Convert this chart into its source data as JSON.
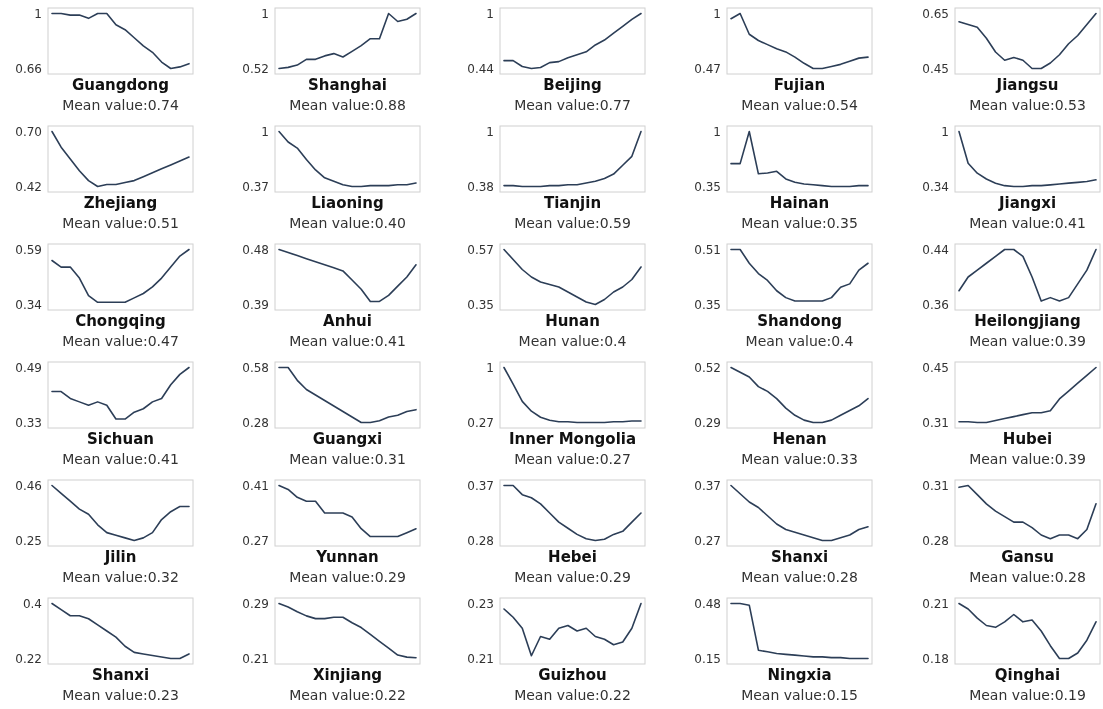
{
  "chart_data": [
    {
      "type": "line",
      "title": "Guangdong",
      "annotations": [
        "Mean value:0.74"
      ],
      "categories": [
        null,
        null,
        null,
        null,
        null,
        null,
        null,
        null,
        null,
        null,
        null,
        null,
        null,
        null,
        null,
        null
      ],
      "color": "#2c3e57",
      "values": [
        1,
        1,
        0.99,
        0.99,
        0.97,
        1,
        1,
        0.93,
        0.9,
        0.85,
        0.8,
        0.76,
        0.7,
        0.66,
        0.67,
        0.69
      ],
      "ylim": [
        0.626,
        1.034
      ],
      "yticks": [
        0.66,
        1
      ],
      "tick_labels": "y"
    },
    {
      "type": "line",
      "title": "Shanghai",
      "annotations": [
        "Mean value:0.88"
      ],
      "categories": [
        null,
        null,
        null,
        null,
        null,
        null,
        null,
        null,
        null,
        null,
        null,
        null,
        null,
        null,
        null,
        null
      ],
      "color": "#2c3e57",
      "values": [
        0.52,
        0.53,
        0.55,
        0.6,
        0.6,
        0.63,
        0.65,
        0.62,
        0.67,
        0.72,
        0.78,
        0.78,
        1,
        0.93,
        0.95,
        1
      ],
      "ylim": [
        0.472,
        1.048
      ],
      "yticks": [
        0.52,
        1
      ],
      "tick_labels": "y"
    },
    {
      "type": "line",
      "title": "Beijing",
      "annotations": [
        "Mean value:0.77"
      ],
      "categories": [
        null,
        null,
        null,
        null,
        null,
        null,
        null,
        null,
        null,
        null,
        null,
        null,
        null,
        null,
        null,
        null
      ],
      "color": "#2c3e57",
      "values": [
        0.52,
        0.52,
        0.46,
        0.44,
        0.45,
        0.5,
        0.51,
        0.55,
        0.58,
        0.61,
        0.68,
        0.73,
        0.8,
        0.87,
        0.94,
        1
      ],
      "ylim": [
        0.384,
        1.056
      ],
      "yticks": [
        0.44,
        1
      ],
      "tick_labels": "y"
    },
    {
      "type": "line",
      "title": "Fujian",
      "annotations": [
        "Mean value:0.54"
      ],
      "categories": [
        null,
        null,
        null,
        null,
        null,
        null,
        null,
        null,
        null,
        null,
        null,
        null,
        null,
        null,
        null,
        null
      ],
      "color": "#2c3e57",
      "values": [
        0.95,
        1,
        0.8,
        0.74,
        0.7,
        0.66,
        0.63,
        0.58,
        0.52,
        0.47,
        0.47,
        0.49,
        0.51,
        0.54,
        0.57,
        0.58
      ],
      "ylim": [
        0.417,
        1.053
      ],
      "yticks": [
        0.47,
        1
      ],
      "tick_labels": "y"
    },
    {
      "type": "line",
      "title": "Jiangsu",
      "annotations": [
        "Mean value:0.53"
      ],
      "categories": [
        null,
        null,
        null,
        null,
        null,
        null,
        null,
        null,
        null,
        null,
        null,
        null,
        null,
        null,
        null,
        null
      ],
      "color": "#2c3e57",
      "values": [
        0.62,
        0.61,
        0.6,
        0.56,
        0.51,
        0.48,
        0.49,
        0.48,
        0.45,
        0.45,
        0.47,
        0.5,
        0.54,
        0.57,
        0.61,
        0.65
      ],
      "ylim": [
        0.43,
        0.67
      ],
      "yticks": [
        0.45,
        0.65
      ],
      "tick_labels": "y"
    },
    {
      "type": "line",
      "title": "Zhejiang",
      "annotations": [
        "Mean value:0.51"
      ],
      "categories": [
        null,
        null,
        null,
        null,
        null,
        null,
        null,
        null,
        null,
        null,
        null,
        null,
        null,
        null,
        null,
        null
      ],
      "color": "#2c3e57",
      "values": [
        0.7,
        0.62,
        0.56,
        0.5,
        0.45,
        0.42,
        0.43,
        0.43,
        0.44,
        0.45,
        0.47,
        0.49,
        0.51,
        0.53,
        0.55,
        0.57
      ],
      "ylim": [
        0.392,
        0.728
      ],
      "yticks": [
        0.42,
        {
          "value": 0.7,
          "label": "0.70"
        }
      ],
      "tick_labels": "y"
    },
    {
      "type": "line",
      "title": "Liaoning",
      "annotations": [
        "Mean value:0.40"
      ],
      "categories": [
        null,
        null,
        null,
        null,
        null,
        null,
        null,
        null,
        null,
        null,
        null,
        null,
        null,
        null,
        null,
        null
      ],
      "color": "#2c3e57",
      "values": [
        1,
        0.88,
        0.81,
        0.68,
        0.56,
        0.47,
        0.43,
        0.39,
        0.37,
        0.37,
        0.38,
        0.38,
        0.38,
        0.39,
        0.39,
        0.41
      ],
      "ylim": [
        0.307,
        1.063
      ],
      "yticks": [
        0.37,
        1
      ],
      "tick_labels": "y"
    },
    {
      "type": "line",
      "title": "Tianjin",
      "annotations": [
        "Mean value:0.59"
      ],
      "categories": [
        null,
        null,
        null,
        null,
        null,
        null,
        null,
        null,
        null,
        null,
        null,
        null,
        null,
        null,
        null,
        null
      ],
      "color": "#2c3e57",
      "values": [
        0.39,
        0.39,
        0.38,
        0.38,
        0.38,
        0.39,
        0.39,
        0.4,
        0.4,
        0.42,
        0.44,
        0.47,
        0.52,
        0.62,
        0.72,
        1
      ],
      "ylim": [
        0.318,
        1.062
      ],
      "yticks": [
        0.38,
        1
      ],
      "tick_labels": "y"
    },
    {
      "type": "line",
      "title": "Hainan",
      "annotations": [
        "Mean value:0.35"
      ],
      "categories": [
        null,
        null,
        null,
        null,
        null,
        null,
        null,
        null,
        null,
        null,
        null,
        null,
        null,
        null,
        null,
        null
      ],
      "color": "#2c3e57",
      "values": [
        0.62,
        0.62,
        1,
        0.5,
        0.51,
        0.53,
        0.44,
        0.4,
        0.38,
        0.37,
        0.36,
        0.35,
        0.35,
        0.35,
        0.36,
        0.36
      ],
      "ylim": [
        0.285,
        1.065
      ],
      "yticks": [
        0.35,
        1
      ],
      "tick_labels": "y"
    },
    {
      "type": "line",
      "title": "Jiangxi",
      "annotations": [
        "Mean value:0.41"
      ],
      "categories": [
        null,
        null,
        null,
        null,
        null,
        null,
        null,
        null,
        null,
        null,
        null,
        null,
        null,
        null,
        null,
        null
      ],
      "color": "#2c3e57",
      "values": [
        1,
        0.62,
        0.5,
        0.43,
        0.38,
        0.35,
        0.34,
        0.34,
        0.35,
        0.35,
        0.36,
        0.37,
        0.38,
        0.39,
        0.4,
        0.42
      ],
      "ylim": [
        0.274,
        1.066
      ],
      "yticks": [
        0.34,
        1
      ],
      "tick_labels": "y"
    },
    {
      "type": "line",
      "title": "Chongqing",
      "annotations": [
        "Mean value:0.47"
      ],
      "categories": [
        null,
        null,
        null,
        null,
        null,
        null,
        null,
        null,
        null,
        null,
        null,
        null,
        null,
        null,
        null,
        null
      ],
      "color": "#2c3e57",
      "values": [
        0.54,
        0.51,
        0.51,
        0.46,
        0.38,
        0.35,
        0.35,
        0.35,
        0.35,
        0.37,
        0.39,
        0.42,
        0.46,
        0.51,
        0.56,
        0.59
      ],
      "ylim": [
        0.315,
        0.615
      ],
      "yticks": [
        0.34,
        0.59
      ],
      "tick_labels": "y"
    },
    {
      "type": "line",
      "title": "Anhui",
      "annotations": [
        "Mean value:0.41"
      ],
      "categories": [
        null,
        null,
        null,
        null,
        null,
        null,
        null,
        null,
        null,
        null,
        null,
        null,
        null,
        null,
        null,
        null
      ],
      "color": "#2c3e57",
      "values": [
        0.48,
        0.475,
        0.47,
        0.465,
        0.46,
        0.455,
        0.45,
        0.445,
        0.43,
        0.415,
        0.395,
        0.395,
        0.405,
        0.42,
        0.435,
        0.455
      ],
      "ylim": [
        0.381,
        0.489
      ],
      "yticks": [
        0.39,
        0.48
      ],
      "tick_labels": "y"
    },
    {
      "type": "line",
      "title": "Hunan",
      "annotations": [
        "Mean value:0.4"
      ],
      "categories": [
        null,
        null,
        null,
        null,
        null,
        null,
        null,
        null,
        null,
        null,
        null,
        null,
        null,
        null,
        null,
        null
      ],
      "color": "#2c3e57",
      "values": [
        0.57,
        0.53,
        0.49,
        0.46,
        0.44,
        0.43,
        0.42,
        0.4,
        0.38,
        0.36,
        0.35,
        0.37,
        0.4,
        0.42,
        0.45,
        0.5
      ],
      "ylim": [
        0.328,
        0.592
      ],
      "yticks": [
        0.35,
        0.57
      ],
      "tick_labels": "y"
    },
    {
      "type": "line",
      "title": "Shandong",
      "annotations": [
        "Mean value:0.4"
      ],
      "categories": [
        null,
        null,
        null,
        null,
        null,
        null,
        null,
        null,
        null,
        null,
        null,
        null,
        null,
        null,
        null,
        null
      ],
      "color": "#2c3e57",
      "values": [
        0.51,
        0.51,
        0.47,
        0.44,
        0.42,
        0.39,
        0.37,
        0.36,
        0.36,
        0.36,
        0.36,
        0.37,
        0.4,
        0.41,
        0.45,
        0.47
      ],
      "ylim": [
        0.334,
        0.526
      ],
      "yticks": [
        0.35,
        0.51
      ],
      "tick_labels": "y"
    },
    {
      "type": "line",
      "title": "Heilongjiang",
      "annotations": [
        "Mean value:0.39"
      ],
      "categories": [
        null,
        null,
        null,
        null,
        null,
        null,
        null,
        null,
        null,
        null,
        null,
        null,
        null,
        null,
        null,
        null
      ],
      "color": "#2c3e57",
      "values": [
        0.38,
        0.4,
        0.41,
        0.42,
        0.43,
        0.44,
        0.44,
        0.43,
        0.4,
        0.365,
        0.37,
        0.365,
        0.37,
        0.39,
        0.41,
        0.44
      ],
      "ylim": [
        0.352,
        0.448
      ],
      "yticks": [
        0.36,
        0.44
      ],
      "tick_labels": "y"
    },
    {
      "type": "line",
      "title": "Sichuan",
      "annotations": [
        "Mean value:0.41"
      ],
      "categories": [
        null,
        null,
        null,
        null,
        null,
        null,
        null,
        null,
        null,
        null,
        null,
        null,
        null,
        null,
        null,
        null
      ],
      "color": "#2c3e57",
      "values": [
        0.42,
        0.42,
        0.4,
        0.39,
        0.38,
        0.39,
        0.38,
        0.34,
        0.34,
        0.36,
        0.37,
        0.39,
        0.4,
        0.44,
        0.47,
        0.49
      ],
      "ylim": [
        0.314,
        0.506
      ],
      "yticks": [
        0.33,
        0.49
      ],
      "tick_labels": "y"
    },
    {
      "type": "line",
      "title": "Guangxi",
      "annotations": [
        "Mean value:0.31"
      ],
      "categories": [
        null,
        null,
        null,
        null,
        null,
        null,
        null,
        null,
        null,
        null,
        null,
        null,
        null,
        null,
        null,
        null
      ],
      "color": "#2c3e57",
      "values": [
        0.58,
        0.58,
        0.51,
        0.46,
        0.43,
        0.4,
        0.37,
        0.34,
        0.31,
        0.28,
        0.28,
        0.29,
        0.31,
        0.32,
        0.34,
        0.35
      ],
      "ylim": [
        0.25,
        0.61
      ],
      "yticks": [
        0.28,
        0.58
      ],
      "tick_labels": "y"
    },
    {
      "type": "line",
      "title": "Inner Mongolia",
      "annotations": [
        "Mean value:0.27"
      ],
      "categories": [
        null,
        null,
        null,
        null,
        null,
        null,
        null,
        null,
        null,
        null,
        null,
        null,
        null,
        null,
        null,
        null
      ],
      "color": "#2c3e57",
      "values": [
        1,
        0.78,
        0.55,
        0.42,
        0.34,
        0.3,
        0.28,
        0.28,
        0.27,
        0.27,
        0.27,
        0.27,
        0.28,
        0.28,
        0.29,
        0.29
      ],
      "ylim": [
        0.197,
        1.073
      ],
      "yticks": [
        0.27,
        1
      ],
      "tick_labels": "y"
    },
    {
      "type": "line",
      "title": "Henan",
      "annotations": [
        "Mean value:0.33"
      ],
      "categories": [
        null,
        null,
        null,
        null,
        null,
        null,
        null,
        null,
        null,
        null,
        null,
        null,
        null,
        null,
        null,
        null
      ],
      "color": "#2c3e57",
      "values": [
        0.52,
        0.5,
        0.48,
        0.44,
        0.42,
        0.39,
        0.35,
        0.32,
        0.3,
        0.29,
        0.29,
        0.3,
        0.32,
        0.34,
        0.36,
        0.39
      ],
      "ylim": [
        0.267,
        0.543
      ],
      "yticks": [
        0.29,
        0.52
      ],
      "tick_labels": "y"
    },
    {
      "type": "line",
      "title": "Hubei",
      "annotations": [
        "Mean value:0.39"
      ],
      "categories": [
        null,
        null,
        null,
        null,
        null,
        null,
        null,
        null,
        null,
        null,
        null,
        null,
        null,
        null,
        null,
        null
      ],
      "color": "#2c3e57",
      "values": [
        0.312,
        0.312,
        0.31,
        0.31,
        0.315,
        0.32,
        0.325,
        0.33,
        0.335,
        0.335,
        0.34,
        0.37,
        0.39,
        0.41,
        0.43,
        0.45
      ],
      "ylim": [
        0.296,
        0.464
      ],
      "yticks": [
        0.31,
        0.45
      ],
      "tick_labels": "y"
    },
    {
      "type": "line",
      "title": "Jilin",
      "annotations": [
        "Mean value:0.32"
      ],
      "categories": [
        null,
        null,
        null,
        null,
        null,
        null,
        null,
        null,
        null,
        null,
        null,
        null,
        null,
        null,
        null,
        null
      ],
      "color": "#2c3e57",
      "values": [
        0.46,
        0.43,
        0.4,
        0.37,
        0.35,
        0.31,
        0.28,
        0.27,
        0.26,
        0.25,
        0.26,
        0.28,
        0.33,
        0.36,
        0.38,
        0.38
      ],
      "ylim": [
        0.229,
        0.481
      ],
      "yticks": [
        0.25,
        0.46
      ],
      "tick_labels": "y"
    },
    {
      "type": "line",
      "title": "Yunnan",
      "annotations": [
        "Mean value:0.29"
      ],
      "categories": [
        null,
        null,
        null,
        null,
        null,
        null,
        null,
        null,
        null,
        null,
        null,
        null,
        null,
        null,
        null,
        null
      ],
      "color": "#2c3e57",
      "values": [
        0.41,
        0.4,
        0.38,
        0.37,
        0.37,
        0.34,
        0.34,
        0.34,
        0.33,
        0.3,
        0.28,
        0.28,
        0.28,
        0.28,
        0.29,
        0.3
      ],
      "ylim": [
        0.256,
        0.424
      ],
      "yticks": [
        0.27,
        0.41
      ],
      "tick_labels": "y"
    },
    {
      "type": "line",
      "title": "Hebei",
      "annotations": [
        "Mean value:0.29"
      ],
      "categories": [
        null,
        null,
        null,
        null,
        null,
        null,
        null,
        null,
        null,
        null,
        null,
        null,
        null,
        null,
        null,
        null
      ],
      "color": "#2c3e57",
      "values": [
        0.37,
        0.37,
        0.355,
        0.35,
        0.34,
        0.325,
        0.31,
        0.3,
        0.29,
        0.283,
        0.28,
        0.282,
        0.29,
        0.295,
        0.31,
        0.325
      ],
      "ylim": [
        0.271,
        0.379
      ],
      "yticks": [
        0.28,
        0.37
      ],
      "tick_labels": "y"
    },
    {
      "type": "line",
      "title": "Shanxi",
      "annotations": [
        "Mean value:0.28"
      ],
      "categories": [
        null,
        null,
        null,
        null,
        null,
        null,
        null,
        null,
        null,
        null,
        null,
        null,
        null,
        null,
        null,
        null
      ],
      "color": "#2c3e57",
      "values": [
        0.37,
        0.355,
        0.34,
        0.33,
        0.315,
        0.3,
        0.29,
        0.285,
        0.28,
        0.275,
        0.27,
        0.27,
        0.275,
        0.28,
        0.29,
        0.295
      ],
      "ylim": [
        0.26,
        0.38
      ],
      "yticks": [
        0.27,
        0.37
      ],
      "tick_labels": "y"
    },
    {
      "type": "line",
      "title": "Gansu",
      "annotations": [
        "Mean value:0.28"
      ],
      "categories": [
        null,
        null,
        null,
        null,
        null,
        null,
        null,
        null,
        null,
        null,
        null,
        null,
        null,
        null,
        null,
        null
      ],
      "color": "#2c3e57",
      "values": [
        0.309,
        0.31,
        0.305,
        0.3,
        0.296,
        0.293,
        0.29,
        0.29,
        0.287,
        0.283,
        0.281,
        0.283,
        0.283,
        0.281,
        0.286,
        0.3
      ],
      "ylim": [
        0.277,
        0.313
      ],
      "yticks": [
        0.28,
        0.31
      ],
      "tick_labels": "y"
    },
    {
      "type": "line",
      "title": "Shanxi",
      "annotations": [
        "Mean value:0.23"
      ],
      "categories": [
        null,
        null,
        null,
        null,
        null,
        null,
        null,
        null,
        null,
        null,
        null,
        null,
        null,
        null,
        null,
        null
      ],
      "color": "#2c3e57",
      "values": [
        0.4,
        0.38,
        0.36,
        0.36,
        0.35,
        0.33,
        0.31,
        0.29,
        0.26,
        0.24,
        0.235,
        0.23,
        0.225,
        0.22,
        0.22,
        0.235
      ],
      "ylim": [
        0.202,
        0.418
      ],
      "yticks": [
        0.22,
        0.4
      ],
      "tick_labels": "y"
    },
    {
      "type": "line",
      "title": "Xinjiang",
      "annotations": [
        "Mean value:0.22"
      ],
      "categories": [
        null,
        null,
        null,
        null,
        null,
        null,
        null,
        null,
        null,
        null,
        null,
        null,
        null,
        null,
        null,
        null
      ],
      "color": "#2c3e57",
      "values": [
        0.29,
        0.285,
        0.278,
        0.272,
        0.268,
        0.268,
        0.27,
        0.27,
        0.262,
        0.255,
        0.245,
        0.235,
        0.225,
        0.215,
        0.212,
        0.211
      ],
      "ylim": [
        0.202,
        0.298
      ],
      "yticks": [
        0.21,
        0.29
      ],
      "tick_labels": "y"
    },
    {
      "type": "line",
      "title": "Guizhou",
      "annotations": [
        "Mean value:0.22"
      ],
      "categories": [
        null,
        null,
        null,
        null,
        null,
        null,
        null,
        null,
        null,
        null,
        null,
        null,
        null,
        null,
        null,
        null
      ],
      "color": "#2c3e57",
      "values": [
        0.228,
        0.225,
        0.221,
        0.211,
        0.218,
        0.217,
        0.221,
        0.222,
        0.22,
        0.221,
        0.218,
        0.217,
        0.215,
        0.216,
        0.221,
        0.23
      ],
      "ylim": [
        0.208,
        0.232
      ],
      "yticks": [
        0.21,
        0.23
      ],
      "tick_labels": "y"
    },
    {
      "type": "line",
      "title": "Ningxia",
      "annotations": [
        "Mean value:0.15"
      ],
      "categories": [
        null,
        null,
        null,
        null,
        null,
        null,
        null,
        null,
        null,
        null,
        null,
        null,
        null,
        null,
        null,
        null
      ],
      "color": "#2c3e57",
      "values": [
        0.48,
        0.48,
        0.47,
        0.2,
        0.19,
        0.18,
        0.175,
        0.17,
        0.165,
        0.16,
        0.16,
        0.155,
        0.155,
        0.15,
        0.15,
        0.15
      ],
      "ylim": [
        0.117,
        0.513
      ],
      "yticks": [
        0.15,
        0.48
      ],
      "tick_labels": "y"
    },
    {
      "type": "line",
      "title": "Qinghai",
      "annotations": [
        "Mean value:0.19"
      ],
      "categories": [
        null,
        null,
        null,
        null,
        null,
        null,
        null,
        null,
        null,
        null,
        null,
        null,
        null,
        null,
        null,
        null
      ],
      "color": "#2c3e57",
      "values": [
        0.21,
        0.207,
        0.202,
        0.198,
        0.197,
        0.2,
        0.204,
        0.2,
        0.201,
        0.195,
        0.187,
        0.18,
        0.18,
        0.183,
        0.19,
        0.2
      ],
      "ylim": [
        0.177,
        0.213
      ],
      "yticks": [
        0.18,
        0.21
      ],
      "tick_labels": "y"
    }
  ]
}
